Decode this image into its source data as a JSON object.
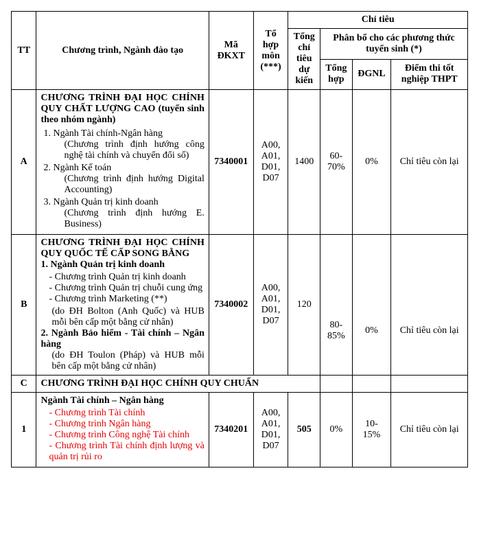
{
  "header": {
    "tt": "TT",
    "program": "Chương trình, Ngành đào tạo",
    "ma": "Mã ĐKXT",
    "tohop": "Tổ hợp môn (***)",
    "chitieu": "Chỉ tiêu",
    "tongct": "Tổng chỉ tiêu dự kiến",
    "phanbo": "Phân bổ cho các phương thức tuyển sinh (*)",
    "tonghop": "Tổng hợp",
    "dgnl": "ĐGNL",
    "diemthi": "Điểm thi tốt nghiệp THPT"
  },
  "rows": {
    "A": {
      "tt": "A",
      "title": "CHƯƠNG TRÌNH ĐẠI HỌC CHÍNH QUY CHẤT LƯỢNG CAO (tuyển sinh theo nhóm ngành)",
      "items": {
        "i1": "Ngành Tài chính-Ngân hàng",
        "i1s": "(Chương trình định hướng công nghệ tài chính và chuyển đổi số)",
        "i2": "Ngành Kế toán",
        "i2s": "(Chương trình định hướng Digital Accounting)",
        "i3": "Ngành Quản trị kinh doanh",
        "i3s": "(Chương trình định hướng E. Business)"
      },
      "ma": "7340001",
      "tohop": "A00, A01, D01, D07",
      "tongct": "1400",
      "tonghop": "60-70%",
      "dgnl": "0%",
      "diemthi": "Chỉ tiêu còn lại"
    },
    "B": {
      "tt": "B",
      "title": "CHƯƠNG TRÌNH ĐẠI HỌC CHÍNH QUY QUỐC TẾ CẤP SONG BẰNG",
      "g1": "1. Ngành Quản trị kinh doanh",
      "g1i1": "Chương trình Quản trị kinh doanh",
      "g1i2": "Chương trình Quản trị chuỗi cung ứng",
      "g1i3": "Chương trình Marketing (**)",
      "g1n": "(do ĐH Bolton (Anh Quốc) và HUB mỗi bên cấp một bằng cử nhân)",
      "g2": "2. Ngành Bảo hiểm - Tài chính – Ngân hàng",
      "g2n": "(do ĐH Toulon (Pháp) và HUB mỗi bên cấp một bằng cử nhân)",
      "ma": "7340002",
      "tohop": "A00, A01, D01, D07",
      "tongct": "120",
      "tonghop": "80-85%",
      "dgnl": "0%",
      "diemthi": "Chỉ tiêu còn lại"
    },
    "C": {
      "tt": "C",
      "title": "CHƯƠNG TRÌNH ĐẠI HỌC CHÍNH QUY CHUẨN"
    },
    "r1": {
      "tt": "1",
      "title": "Ngành Tài chính – Ngân hàng",
      "i1": "Chương trình Tài chính",
      "i2": "Chương trình Ngân hàng",
      "i3": "Chương trình Công nghệ Tài chính",
      "i4": "Chương trình Tài chính định lượng và quản trị rủi ro",
      "ma": "7340201",
      "tohop": "A00, A01, D01, D07",
      "tongct": "505",
      "tonghop": "0%",
      "dgnl": "10-15%",
      "diemthi": "Chỉ tiêu còn lại"
    }
  }
}
